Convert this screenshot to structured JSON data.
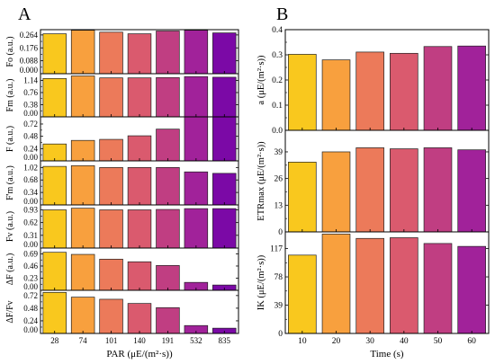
{
  "figure": {
    "panel_a_label": "A",
    "panel_b_label": "B",
    "palette_a": [
      "#F9C81E",
      "#F8A03E",
      "#EC7A5A",
      "#DA5A6E",
      "#C03E82",
      "#A1229A",
      "#7B09A6"
    ],
    "palette_b": [
      "#F9C81E",
      "#F8A03E",
      "#EC7A5A",
      "#DA5A6E",
      "#C03E82",
      "#A1229A"
    ]
  },
  "chart_data": [
    {
      "panel": "A",
      "type": "bar",
      "ylabel": "Fo (a.u.)",
      "categories": [
        "28",
        "74",
        "101",
        "140",
        "191",
        "532",
        "835"
      ],
      "values": [
        0.272,
        0.296,
        0.283,
        0.272,
        0.291,
        0.296,
        0.278
      ],
      "ylim": [
        0,
        0.3
      ],
      "yticks": [
        "0.000",
        "0.088",
        "0.176",
        "0.264"
      ]
    },
    {
      "panel": "A",
      "type": "bar",
      "ylabel": "Fm (a.u.)",
      "categories": [
        "28",
        "74",
        "101",
        "140",
        "191",
        "532",
        "835"
      ],
      "values": [
        1.2,
        1.28,
        1.22,
        1.22,
        1.23,
        1.26,
        1.24
      ],
      "ylim": [
        0,
        1.35
      ],
      "yticks": [
        "0.00",
        "0.38",
        "0.76",
        "1.14"
      ]
    },
    {
      "panel": "A",
      "type": "bar",
      "ylabel": "F (a.u.)",
      "categories": [
        "28",
        "74",
        "101",
        "140",
        "191",
        "532",
        "835"
      ],
      "values": [
        0.33,
        0.4,
        0.42,
        0.49,
        0.62,
        0.86,
        0.86
      ],
      "ylim": [
        0,
        0.86
      ],
      "yticks": [
        "0.00",
        "0.24",
        "0.48",
        "0.72"
      ]
    },
    {
      "panel": "A",
      "type": "bar",
      "ylabel": "F'm (a.u.)",
      "categories": [
        "28",
        "74",
        "101",
        "140",
        "191",
        "532",
        "835"
      ],
      "values": [
        1.05,
        1.07,
        1.02,
        1.02,
        1.02,
        0.9,
        0.86
      ],
      "ylim": [
        0,
        1.2
      ],
      "yticks": [
        "0.00",
        "0.34",
        "0.68",
        "1.02"
      ]
    },
    {
      "panel": "A",
      "type": "bar",
      "ylabel": "Fv (a.u.)",
      "categories": [
        "28",
        "74",
        "101",
        "140",
        "191",
        "532",
        "835"
      ],
      "values": [
        0.93,
        0.97,
        0.93,
        0.93,
        0.94,
        0.96,
        0.96
      ],
      "ylim": [
        0,
        1.05
      ],
      "yticks": [
        "0.00",
        "0.31",
        "0.62",
        "0.93"
      ]
    },
    {
      "panel": "A",
      "type": "bar",
      "ylabel": "ΔF (a.u.)",
      "categories": [
        "28",
        "74",
        "101",
        "140",
        "191",
        "532",
        "835"
      ],
      "values": [
        0.72,
        0.68,
        0.59,
        0.54,
        0.47,
        0.15,
        0.1
      ],
      "ylim": [
        0,
        0.8
      ],
      "yticks": [
        "0.00",
        "0.23",
        "0.46",
        "0.69"
      ]
    },
    {
      "panel": "A",
      "type": "bar",
      "ylabel": "ΔF/Fv",
      "categories": [
        "28",
        "74",
        "101",
        "140",
        "191",
        "532",
        "835"
      ],
      "values": [
        0.78,
        0.69,
        0.65,
        0.57,
        0.49,
        0.15,
        0.1
      ],
      "ylim": [
        0,
        0.82
      ],
      "yticks": [
        "0.00",
        "0.24",
        "0.48",
        "0.72"
      ],
      "xlabel": "PAR (μE/(m²·s))"
    },
    {
      "panel": "B",
      "type": "bar",
      "ylabel": "a (μE/(m²·s))",
      "categories": [
        "10",
        "20",
        "30",
        "40",
        "50",
        "60"
      ],
      "values": [
        0.302,
        0.28,
        0.311,
        0.306,
        0.333,
        0.335
      ],
      "ylim": [
        0,
        0.4
      ],
      "yticks": [
        "0.0",
        "0.1",
        "0.2",
        "0.3",
        "0.4"
      ]
    },
    {
      "panel": "B",
      "type": "bar",
      "ylabel": "ETRmax (μE/(m²·s))",
      "categories": [
        "10",
        "20",
        "30",
        "40",
        "50",
        "60"
      ],
      "values": [
        34.0,
        39.0,
        41.0,
        40.5,
        41.0,
        40.0
      ],
      "ylim": [
        0,
        49.5
      ],
      "yticks": [
        "0",
        "13",
        "26",
        "39"
      ]
    },
    {
      "panel": "B",
      "type": "bar",
      "ylabel": "IK (μE/(m²·s))",
      "categories": [
        "10",
        "20",
        "30",
        "40",
        "50",
        "60"
      ],
      "values": [
        108,
        137,
        131,
        132,
        124,
        120
      ],
      "ylim": [
        0,
        140
      ],
      "yticks": [
        "0",
        "39",
        "78",
        "117"
      ],
      "xlabel": "Time (s)"
    }
  ]
}
